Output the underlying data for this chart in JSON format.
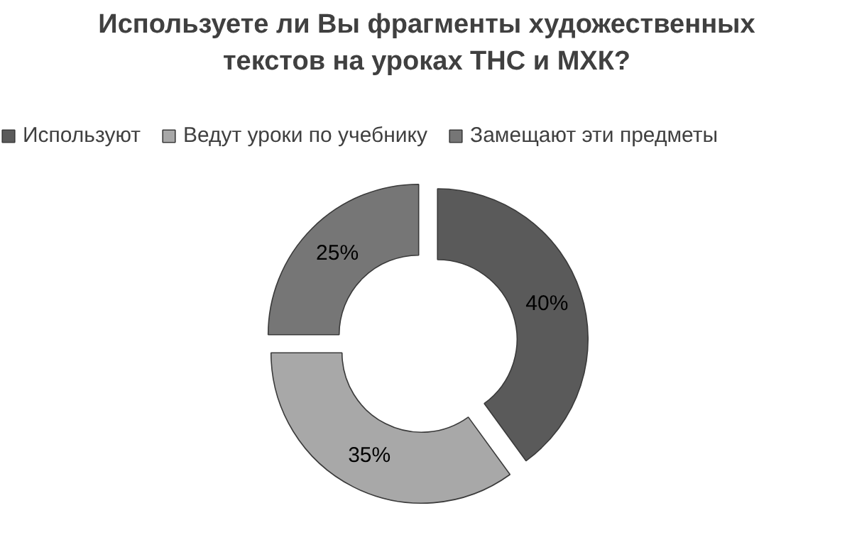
{
  "chart_data": {
    "type": "donut",
    "title": "Используете ли Вы фрагменты художественных\nтекстов на уроках ТНС и МХК?",
    "categories": [
      "Используют",
      "Ведут уроки по учебнику",
      "Замещают эти предметы"
    ],
    "values": [
      40,
      35,
      25
    ],
    "colors": [
      "#5a5a5a",
      "#a8a8a8",
      "#767676"
    ],
    "value_labels": [
      "40%",
      "35%",
      "25%"
    ],
    "legend": "top"
  }
}
